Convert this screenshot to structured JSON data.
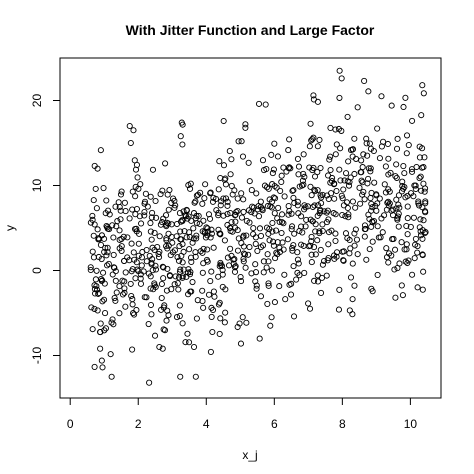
{
  "chart_data": {
    "type": "scatter",
    "title": "With Jitter Function and Large Factor",
    "xlabel": "x_j",
    "ylabel": "y",
    "xlim": [
      -0.3,
      10.9
    ],
    "ylim": [
      -15,
      25
    ],
    "x_ticks": [
      {
        "value": 0,
        "label": "0"
      },
      {
        "value": 2,
        "label": "2"
      },
      {
        "value": 4,
        "label": "4"
      },
      {
        "value": 6,
        "label": "6"
      },
      {
        "value": 8,
        "label": "8"
      },
      {
        "value": 10,
        "label": "10"
      }
    ],
    "y_ticks": [
      {
        "value": -10,
        "label": "-10"
      },
      {
        "value": 0,
        "label": "0"
      },
      {
        "value": 10,
        "label": "10"
      },
      {
        "value": 20,
        "label": "20"
      }
    ],
    "grid": false,
    "legend": "none",
    "marker": "open-circle",
    "marker_color": "#000000",
    "point_count": 1000,
    "trend": "positive linear; y rises from about 0 at x=0.6 to about 9 at x=10.4, spread roughly +/-6",
    "points": [
      [
        0.72,
        12.3
      ],
      [
        0.66,
        -6.9
      ],
      [
        0.95,
        -11.4
      ],
      [
        0.93,
        -10.6
      ],
      [
        0.88,
        -9.2
      ],
      [
        1.05,
        -6.8
      ],
      [
        2.32,
        -13.2
      ],
      [
        5.02,
        -8.6
      ],
      [
        3.64,
        -9.0
      ],
      [
        2.72,
        -9.2
      ],
      [
        1.82,
        -9.3
      ],
      [
        1.86,
        16.5
      ],
      [
        1.75,
        17.0
      ],
      [
        3.25,
        15.8
      ],
      [
        3.28,
        17.4
      ],
      [
        4.95,
        15.2
      ],
      [
        5.15,
        17.2
      ],
      [
        5.55,
        19.6
      ],
      [
        7.15,
        20.6
      ],
      [
        7.92,
        23.5
      ],
      [
        7.98,
        22.6
      ],
      [
        8.64,
        22.3
      ],
      [
        8.45,
        19.2
      ],
      [
        9.45,
        19.4
      ],
      [
        9.15,
        20.5
      ],
      [
        10.35,
        21.8
      ],
      [
        10.05,
        17.6
      ],
      [
        10.28,
        13.3
      ],
      [
        0.75,
        9.6
      ],
      [
        0.98,
        9.7
      ],
      [
        2.62,
        -9.0
      ],
      [
        5.92,
        -5.5
      ],
      [
        6.58,
        -5.4
      ],
      [
        7.05,
        -4.5
      ],
      [
        7.9,
        -4.6
      ],
      [
        8.22,
        -4.7
      ],
      [
        9.56,
        -3.2
      ],
      [
        9.78,
        -2.9
      ],
      [
        10.05,
        -0.5
      ],
      [
        10.2,
        2.1
      ]
    ]
  }
}
